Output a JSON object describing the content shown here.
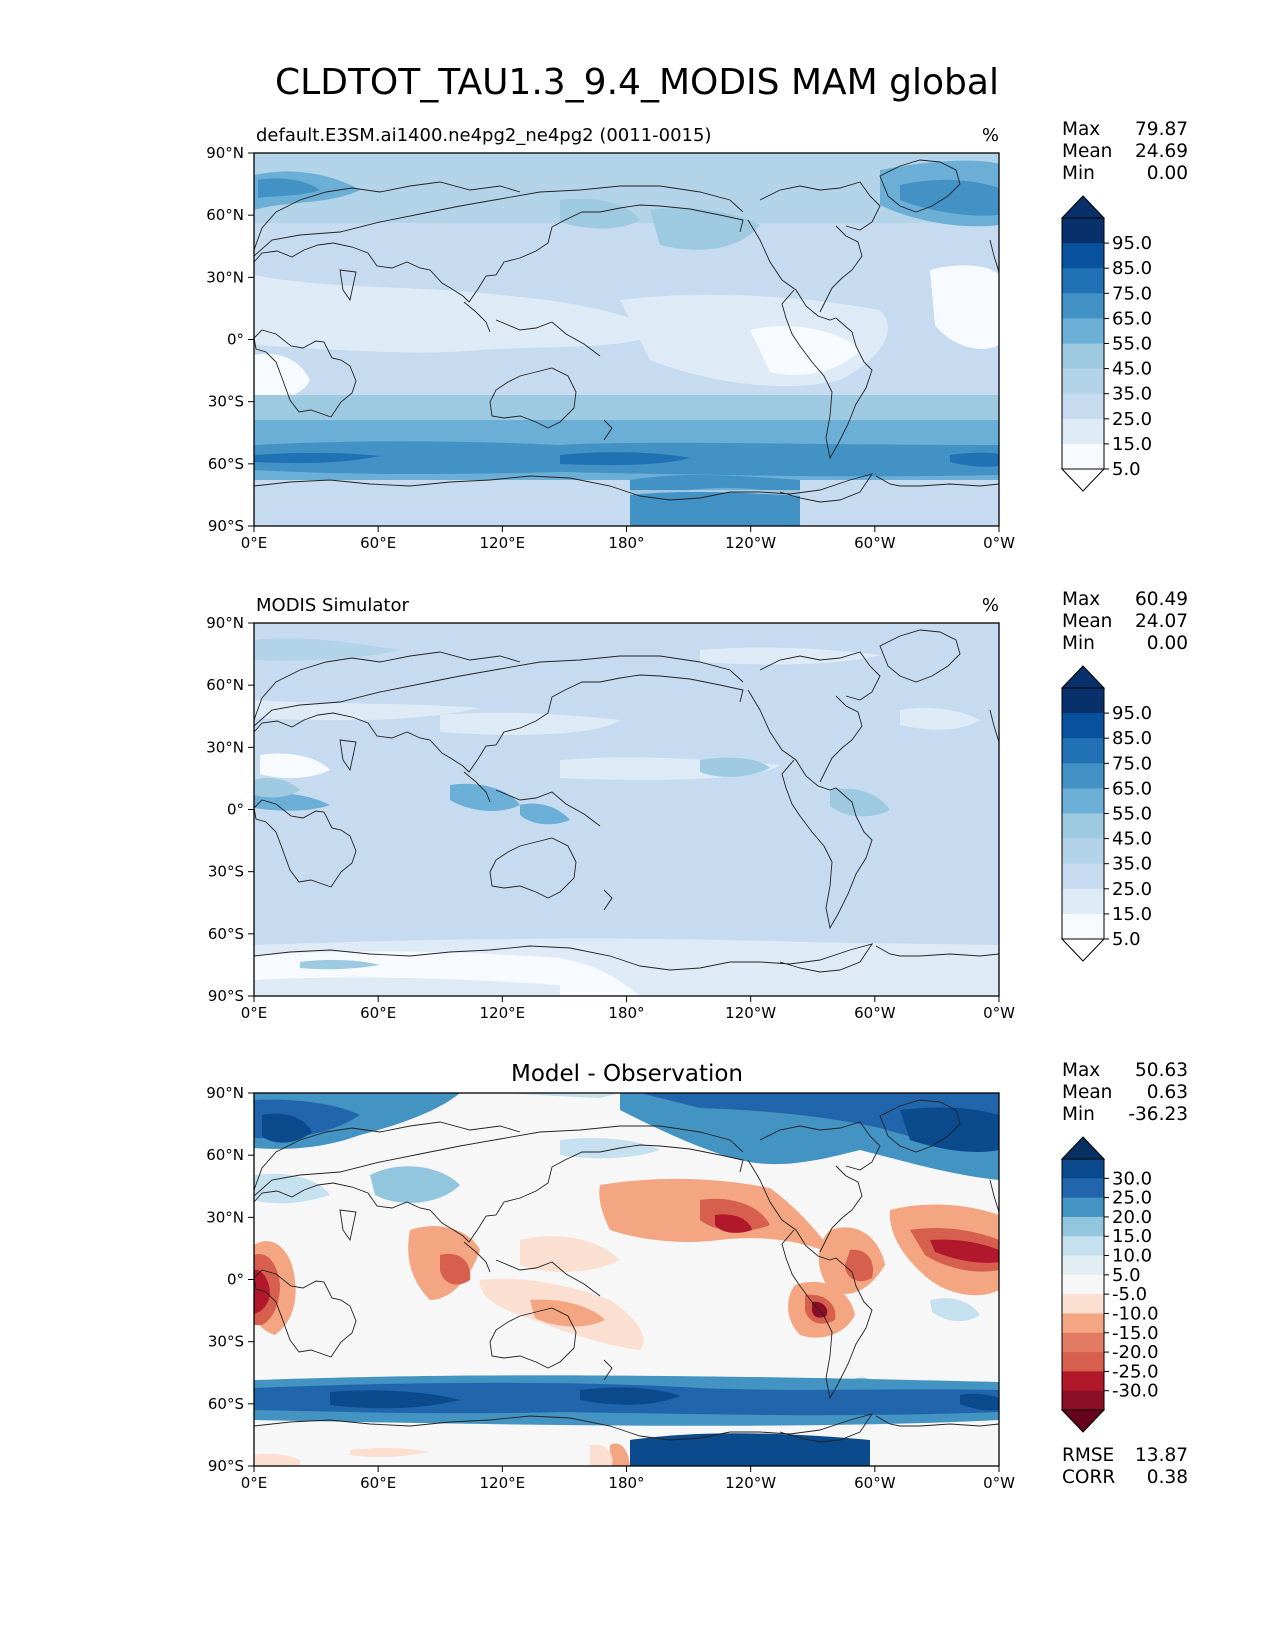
{
  "figure": {
    "title": "CLDTOT_TAU1.3_9.4_MODIS MAM global"
  },
  "axes": {
    "lat_ticks": [
      "90°N",
      "60°N",
      "30°N",
      "0°",
      "30°S",
      "60°S",
      "90°S"
    ],
    "lon_ticks": [
      "0°E",
      "60°E",
      "120°E",
      "180°",
      "120°W",
      "60°W",
      "0°W"
    ]
  },
  "panels": [
    {
      "id": "model",
      "left_title": "default.E3SM.ai1400.ne4pg2_ne4pg2 (0011-0015)",
      "right_title": "%",
      "stats": [
        {
          "label": "Max",
          "value": "79.87"
        },
        {
          "label": "Mean",
          "value": "24.69"
        },
        {
          "label": "Min",
          "value": "0.00"
        }
      ],
      "colorbar": {
        "labels": [
          "95.0",
          "85.0",
          "75.0",
          "65.0",
          "55.0",
          "45.0",
          "35.0",
          "25.0",
          "15.0",
          "5.0"
        ],
        "colors": [
          "#08306b",
          "#08519c",
          "#2171b5",
          "#4292c6",
          "#6baed6",
          "#9ecae1",
          "#b3d3e8",
          "#c6dbef",
          "#deebf7",
          "#f7fbff"
        ],
        "over_color": "#08306b",
        "under_color": "#ffffff"
      }
    },
    {
      "id": "obs",
      "left_title": "MODIS Simulator",
      "right_title": "%",
      "stats": [
        {
          "label": "Max",
          "value": "60.49"
        },
        {
          "label": "Mean",
          "value": "24.07"
        },
        {
          "label": "Min",
          "value": "0.00"
        }
      ],
      "colorbar": {
        "labels": [
          "95.0",
          "85.0",
          "75.0",
          "65.0",
          "55.0",
          "45.0",
          "35.0",
          "25.0",
          "15.0",
          "5.0"
        ],
        "colors": [
          "#08306b",
          "#08519c",
          "#2171b5",
          "#4292c6",
          "#6baed6",
          "#9ecae1",
          "#b3d3e8",
          "#c6dbef",
          "#deebf7",
          "#f7fbff"
        ],
        "over_color": "#08306b",
        "under_color": "#ffffff"
      }
    },
    {
      "id": "diff",
      "center_title": "Model - Observation",
      "stats": [
        {
          "label": "Max",
          "value": "50.63"
        },
        {
          "label": "Mean",
          "value": "0.63"
        },
        {
          "label": "Min",
          "value": "-36.23"
        }
      ],
      "extra_stats": [
        {
          "label": "RMSE",
          "value": "13.87"
        },
        {
          "label": "CORR",
          "value": "0.38"
        }
      ],
      "colorbar": {
        "labels": [
          "30.0",
          "25.0",
          "20.0",
          "15.0",
          "10.0",
          "5.0",
          "-5.0",
          "-10.0",
          "-15.0",
          "-20.0",
          "-25.0",
          "-30.0"
        ],
        "colors": [
          "#0b4a8c",
          "#2166ac",
          "#4393c3",
          "#92c5de",
          "#c5e0ee",
          "#e3eef4",
          "#f7f7f7",
          "#fbe0d2",
          "#f4a582",
          "#e07a63",
          "#d6604d",
          "#b2182b",
          "#8a0f26"
        ],
        "over_color": "#053061",
        "under_color": "#67001f"
      }
    }
  ]
}
